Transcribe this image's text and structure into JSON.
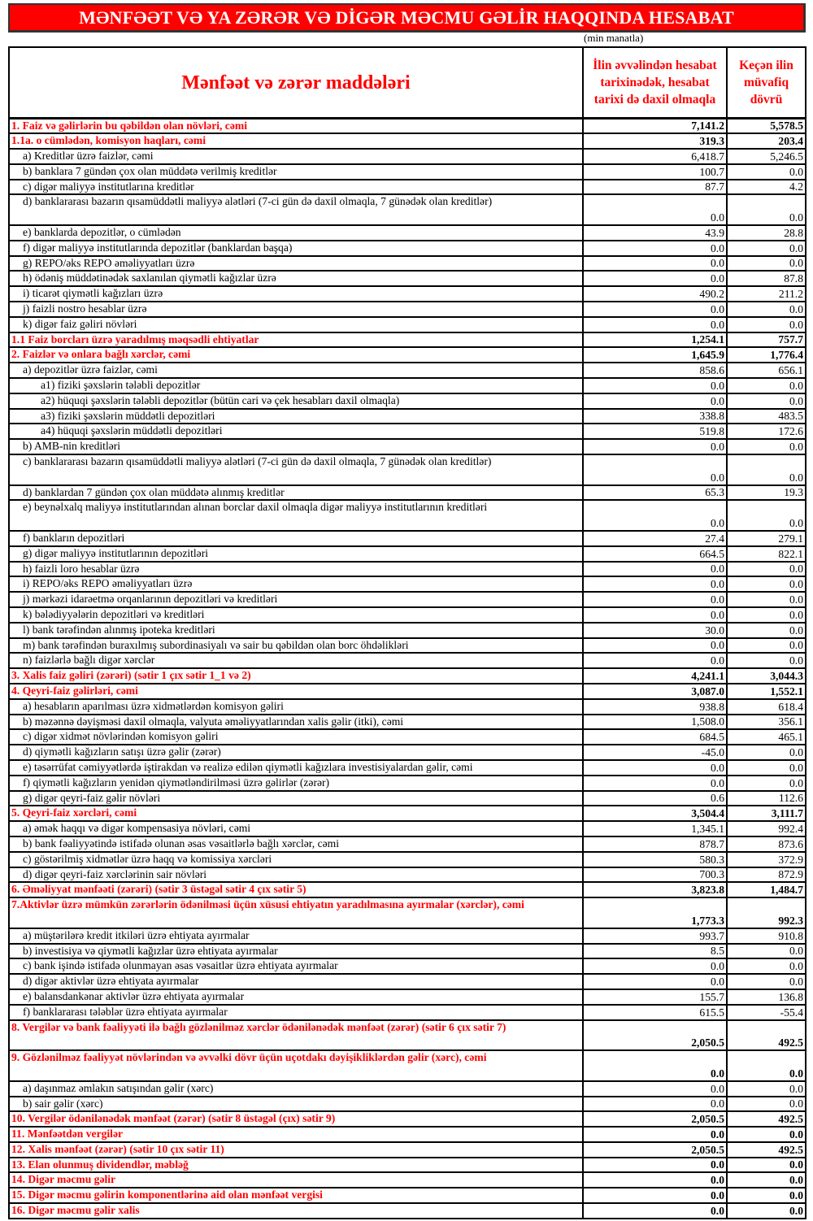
{
  "title": "MƏNFƏƏT VƏ YA ZƏRƏR VƏ DİGƏR MƏCMU GƏLİR HAQQINDA HESABAT",
  "unit_note": "(min manatla)",
  "colors": {
    "accent": "#ff0000",
    "title_text": "#ffffff"
  },
  "columns": {
    "items": "Mənfəət və zərər maddələri",
    "current": "İlin əvvəlindən hesabat tarixinədək, hesabat tarixi də daxil olmaqla",
    "previous": "Keçən ilin müvafiq dövrü"
  },
  "rows": [
    {
      "type": "h",
      "label": "1. Faiz və gəlirlərin bu qəbildən olan növləri, cəmi",
      "current": "7,141.2",
      "previous": "5,578.5"
    },
    {
      "type": "h",
      "label": "1.1a. o cümlədən, komisyon haqları, cəmi",
      "current": "319.3",
      "previous": "203.4"
    },
    {
      "type": "s",
      "label": "a) Kreditlər üzrə faizlər, cəmi",
      "current": "6,418.7",
      "previous": "5,246.5"
    },
    {
      "type": "s",
      "label": "b) banklara 7 gündən çox olan müddətə verilmiş kreditlər",
      "current": "100.7",
      "previous": "0.0"
    },
    {
      "type": "s",
      "label": "c) digər maliyyə institutlarına kreditlər",
      "current": "87.7",
      "previous": "4.2"
    },
    {
      "type": "s",
      "tall": true,
      "label": "d) banklararası bazarın qısamüddətli maliyyə alətləri (7-ci gün də daxil olmaqla, 7 günədək olan kreditlər)",
      "current": "0.0",
      "previous": "0.0"
    },
    {
      "type": "s",
      "label": "e) banklarda depozitlər, o cümlədən",
      "current": "43.9",
      "previous": "28.8"
    },
    {
      "type": "s",
      "label": "f) digər maliyyə institutlarında depozitlər (banklardan başqa)",
      "current": "0.0",
      "previous": "0.0"
    },
    {
      "type": "s",
      "label": "g) REPO/əks REPO əməliyyatları üzrə",
      "current": "0.0",
      "previous": "0.0"
    },
    {
      "type": "s",
      "label": "h) ödəniş müddətinədək saxlanılan qiymətli kağızlar üzrə",
      "current": "0.0",
      "previous": "87.8"
    },
    {
      "type": "s",
      "label": "i) ticarət qiymətli kağızları üzrə",
      "current": "490.2",
      "previous": "211.2"
    },
    {
      "type": "s",
      "label": "j) faizli nostro hesablar üzrə",
      "current": "0.0",
      "previous": "0.0"
    },
    {
      "type": "s",
      "label": "k) digər faiz gəliri növləri",
      "current": "0.0",
      "previous": "0.0"
    },
    {
      "type": "h",
      "label": "1.1 Faiz borcları üzrə yaradılmış məqsədli ehtiyatlar",
      "current": "1,254.1",
      "previous": "757.7"
    },
    {
      "type": "h",
      "label": "2. Faizlər və onlara bağlı xərclər, cəmi",
      "current": "1,645.9",
      "previous": "1,776.4"
    },
    {
      "type": "s",
      "label": "a) depozitlər üzrə faizlər, cəmi",
      "current": "858.6",
      "previous": "656.1"
    },
    {
      "type": "ss",
      "label": "a1) fiziki şəxslərin tələbli depozitlər",
      "current": "0.0",
      "previous": "0.0"
    },
    {
      "type": "ss",
      "label": "a2) hüquqi şəxslərin tələbli depozitlər (bütün cari və çek hesabları daxil olmaqla)",
      "current": "0.0",
      "previous": "0.0"
    },
    {
      "type": "ss",
      "label": "a3) fiziki şəxslərin müddətli depozitləri",
      "current": "338.8",
      "previous": "483.5"
    },
    {
      "type": "ss",
      "label": "a4) hüquqi şəxslərin müddətli depozitləri",
      "current": "519.8",
      "previous": "172.6"
    },
    {
      "type": "s",
      "label": "b) AMB-nin kreditləri",
      "current": "0.0",
      "previous": "0.0"
    },
    {
      "type": "s",
      "tall": true,
      "label": "c) banklararası bazarın qısamüddətli maliyyə alətləri (7-ci gün də daxil olmaqla, 7 günədək olan kreditlər)",
      "current": "0.0",
      "previous": "0.0"
    },
    {
      "type": "s",
      "label": "d) banklardan 7 gündən çox olan müddətə alınmış kreditlər",
      "current": "65.3",
      "previous": "19.3"
    },
    {
      "type": "s",
      "tall": true,
      "label": "e) beynəlxalq maliyyə institutlarından alınan borclar daxil olmaqla digər maliyyə institutlarının kreditləri",
      "current": "0.0",
      "previous": "0.0"
    },
    {
      "type": "s",
      "label": "f) bankların depozitləri",
      "current": "27.4",
      "previous": "279.1"
    },
    {
      "type": "s",
      "label": "g) digər maliyyə institutlarının depozitləri",
      "current": "664.5",
      "previous": "822.1"
    },
    {
      "type": "s",
      "label": "h) faizli loro hesablar üzrə",
      "current": "0.0",
      "previous": "0.0"
    },
    {
      "type": "s",
      "label": "i) REPO/əks REPO əməliyyatları üzrə",
      "current": "0.0",
      "previous": "0.0"
    },
    {
      "type": "s",
      "label": "j) mərkəzi idarəetmə orqanlarının depozitləri və kreditləri",
      "current": "0.0",
      "previous": "0.0"
    },
    {
      "type": "s",
      "label": "k) bələdiyyələrin depozitləri və kreditləri",
      "current": "0.0",
      "previous": "0.0"
    },
    {
      "type": "s",
      "label": "l) bank tərəfindən alınmış ipoteka kreditləri",
      "current": "30.0",
      "previous": "0.0"
    },
    {
      "type": "s",
      "label": "m) bank tərəfindən buraxılmış subordinasiyalı və sair bu qəbildən olan borc öhdəlikləri",
      "current": "0.0",
      "previous": "0.0"
    },
    {
      "type": "s",
      "label": "n) faizlərlə bağlı digər xərclər",
      "current": "0.0",
      "previous": "0.0"
    },
    {
      "type": "h",
      "label": "3. Xalis faiz gəliri (zərəri) (sətir 1 çıx sətir 1_1 və 2)",
      "current": "4,241.1",
      "previous": "3,044.3"
    },
    {
      "type": "h",
      "label": "4. Qeyri-faiz gəlirləri, cəmi",
      "current": "3,087.0",
      "previous": "1,552.1"
    },
    {
      "type": "s",
      "label": "a) hesabların aparılması üzrə xidmətlərdən komisyon gəliri",
      "current": "938.8",
      "previous": "618.4"
    },
    {
      "type": "s",
      "label": "b) məzənnə dəyişməsi daxil olmaqla, valyuta əməliyyatlarından xalis gəlir (itki), cəmi",
      "current": "1,508.0",
      "previous": "356.1"
    },
    {
      "type": "s",
      "label": "c) digər xidmət növlərindən komisyon gəliri",
      "current": "684.5",
      "previous": "465.1"
    },
    {
      "type": "s",
      "label": "d) qiymətli kağızların satışı üzrə gəlir (zərər)",
      "current": "-45.0",
      "previous": "0.0"
    },
    {
      "type": "s",
      "label": "e) təsərrüfat cəmiyyətlərdə iştirakdan və realizə edilən qiymətli kağızlara investisiyalardan gəlir, cəmi",
      "current": "0.0",
      "previous": "0.0"
    },
    {
      "type": "s",
      "label": "f) qiymətli kağızların yenidən qiymətləndirilməsi üzrə gəlirlər (zərər)",
      "current": "0.0",
      "previous": "0.0"
    },
    {
      "type": "s",
      "label": "g) digər qeyri-faiz gəlir növləri",
      "current": "0.6",
      "previous": "112.6"
    },
    {
      "type": "h",
      "label": "5. Qeyri-faiz xərcləri, cəmi",
      "current": "3,504.4",
      "previous": "3,111.7"
    },
    {
      "type": "s",
      "label": "a) əmək haqqı və digər kompensasiya növləri, cəmi",
      "current": "1,345.1",
      "previous": "992.4"
    },
    {
      "type": "s",
      "label": "b) bank fəaliyyətində istifadə olunan əsas vəsaitlərlə bağlı xərclər, cəmi",
      "current": "878.7",
      "previous": "873.6"
    },
    {
      "type": "s",
      "label": "c) göstərilmiş xidmətlər üzrə haqq və komissiya xərcləri",
      "current": "580.3",
      "previous": "372.9"
    },
    {
      "type": "s",
      "label": "d) digər qeyri-faiz xərclərinin sair növləri",
      "current": "700.3",
      "previous": "872.9"
    },
    {
      "type": "h",
      "label": "6. Əməliyyat mənfəəti (zərəri) (sətir 3 üstəgəl sətir 4 çıx sətir 5)",
      "current": "3,823.8",
      "previous": "1,484.7"
    },
    {
      "type": "h",
      "tall": true,
      "wrap": true,
      "label": "7.Aktivlər üzrə mümkün zərərlərin ödənilməsi üçün xüsusi ehtiyatın yaradılmasına ayırmalar (xərclər), cəmi",
      "current": "1,773.3",
      "previous": "992.3"
    },
    {
      "type": "s",
      "label": "a) müştərilərə kredit itkiləri üzrə ehtiyata ayırmalar",
      "current": "993.7",
      "previous": "910.8"
    },
    {
      "type": "s",
      "label": "b) investisiya və qiymətli kağızlar üzrə ehtiyata ayırmalar",
      "current": "8.5",
      "previous": "0.0"
    },
    {
      "type": "s",
      "label": "c) bank işində istifadə olunmayan əsas vəsaitlər üzrə ehtiyata ayırmalar",
      "current": "0.0",
      "previous": "0.0"
    },
    {
      "type": "s",
      "label": "d) digər aktivlər üzrə ehtiyata ayırmalar",
      "current": "0.0",
      "previous": "0.0"
    },
    {
      "type": "s",
      "label": "e) balansdankənar aktivlər üzrə ehtiyata ayırmalar",
      "current": "155.7",
      "previous": "136.8"
    },
    {
      "type": "s",
      "label": "f) banklararası tələblər üzrə ehtiyata ayırmalar",
      "current": "615.5",
      "previous": "-55.4"
    },
    {
      "type": "h",
      "tall": true,
      "label": "8. Vergilər və bank fəaliyyəti ilə bağlı gözlənilməz xərclər ödənilənədək mənfəət (zərər) (sətir 6 çıx sətir 7)",
      "current": "2,050.5",
      "previous": "492.5"
    },
    {
      "type": "h",
      "tall": true,
      "label": "9. Gözlənilməz fəaliyyət növlərindən və əvvəlki dövr üçün uçotdakı dəyişikliklərdən gəlir (xərc), cəmi",
      "current": "0.0",
      "previous": "0.0"
    },
    {
      "type": "s",
      "label": "a) daşınmaz əmlakın satışından gəlir (xərc)",
      "current": "0.0",
      "previous": "0.0"
    },
    {
      "type": "s",
      "label": "b) sair gəlir (xərc)",
      "current": "0.0",
      "previous": "0.0"
    },
    {
      "type": "h",
      "label": "10. Vergilər ödənilənədək mənfəət (zərər) (sətir 8 üstəgəl (çıx) sətir 9)",
      "current": "2,050.5",
      "previous": "492.5"
    },
    {
      "type": "h",
      "label": "11. Mənfəətdən vergilər",
      "current": "0.0",
      "previous": "0.0"
    },
    {
      "type": "h",
      "label": "12. Xalis mənfəət (zərər) (sətir 10 çıx sətir 11)",
      "current": "2,050.5",
      "previous": "492.5"
    },
    {
      "type": "h",
      "label": "13. Elan olunmuş dividendlər, məbləğ",
      "current": "0.0",
      "previous": "0.0"
    },
    {
      "type": "h",
      "label": "14. Digər məcmu gəlir",
      "current": "0.0",
      "previous": "0.0"
    },
    {
      "type": "h",
      "label": "15. Digər məcmu gəlirin komponentlərinə aid olan mənfəət vergisi",
      "current": "0.0",
      "previous": "0.0"
    },
    {
      "type": "h",
      "label": "16. Digər məcmu gəlir xalis",
      "current": "0.0",
      "previous": "0.0"
    }
  ]
}
